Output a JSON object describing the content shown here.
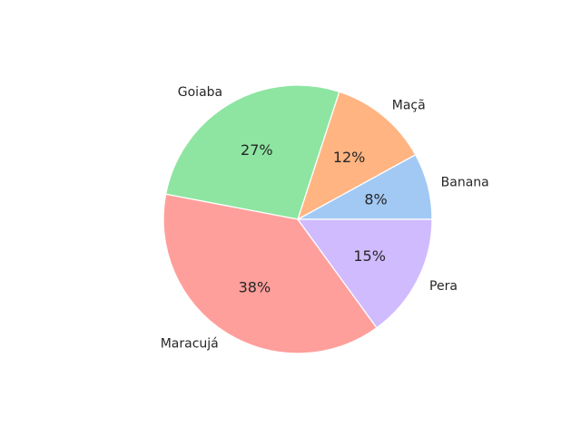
{
  "chart_data": {
    "type": "pie",
    "title": "",
    "labels": [
      "Banana",
      "Maçã",
      "Goiaba",
      "Maracujá",
      "Pera"
    ],
    "values": [
      8,
      12,
      27,
      38,
      15
    ],
    "percent_labels": [
      "8%",
      "12%",
      "27%",
      "38%",
      "15%"
    ],
    "colors": [
      "#a1c9f4",
      "#ffb482",
      "#8de5a1",
      "#ff9f9b",
      "#d0bbff"
    ],
    "start_angle_deg": 0,
    "direction": "counterclockwise",
    "legend": "none"
  }
}
